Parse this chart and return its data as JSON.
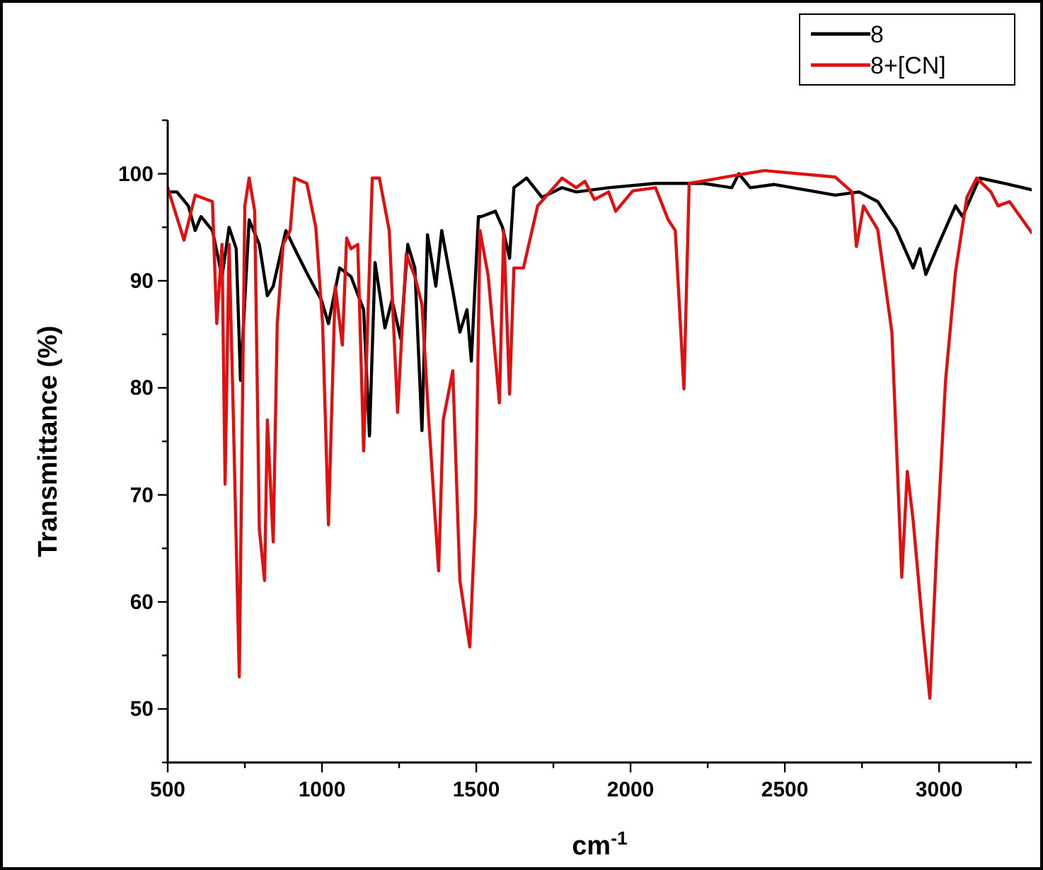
{
  "chart_data": {
    "type": "line",
    "xlabel": "cm$^{-1}$",
    "ylabel": "Transmittance (%)",
    "xlim": [
      500,
      3300
    ],
    "ylim": [
      45,
      105
    ],
    "xticks": [
      500,
      {
        "value": 750,
        "label": null
      },
      1000,
      {
        "value": 1250,
        "label": null
      },
      1500,
      {
        "value": 1750,
        "label": null
      },
      2000,
      {
        "value": 2250,
        "label": null
      },
      2500,
      {
        "value": 2750,
        "label": null
      },
      3000,
      {
        "value": 3250,
        "label": null
      }
    ],
    "yticks": [
      {
        "value": 45,
        "label": null
      },
      50,
      {
        "value": 55,
        "label": null
      },
      60,
      {
        "value": 65,
        "label": null
      },
      70,
      {
        "value": 75,
        "label": null
      },
      80,
      {
        "value": 85,
        "label": null
      },
      90,
      {
        "value": 95,
        "label": null
      },
      100,
      {
        "value": 105,
        "label": null
      }
    ],
    "legend": "top right",
    "grid": false,
    "line_style": "solid",
    "series": [
      {
        "name": "8",
        "color": "#000000",
        "x": [
          500,
          530,
          567,
          589,
          608,
          645,
          676,
          699,
          722,
          736,
          764,
          797,
          823,
          842,
          883,
          920,
          957,
          998,
          1021,
          1057,
          1094,
          1135,
          1154,
          1172,
          1204,
          1227,
          1255,
          1278,
          1301,
          1324,
          1342,
          1369,
          1388,
          1424,
          1447,
          1470,
          1484,
          1507,
          1516,
          1562,
          1585,
          1608,
          1622,
          1663,
          1713,
          1778,
          1824,
          1929,
          2081,
          2236,
          2328,
          2351,
          2388,
          2466,
          2585,
          2663,
          2741,
          2801,
          2861,
          2916,
          2938,
          2957,
          2998,
          3053,
          3076,
          3131,
          3213,
          3300
        ],
        "values": [
          98.3,
          98.3,
          97,
          94.7,
          96,
          94.7,
          90.4,
          95,
          93,
          80.7,
          95.7,
          93.4,
          88.6,
          89.5,
          94.7,
          92.5,
          90.4,
          88.2,
          86,
          91.2,
          90.4,
          87.3,
          75.5,
          91.7,
          85.6,
          88.2,
          84.6,
          93.4,
          91.2,
          76,
          94.3,
          89.5,
          94.7,
          89.1,
          85.2,
          87.3,
          82.5,
          96,
          96,
          96.5,
          95,
          92.1,
          98.7,
          99.6,
          97.8,
          98.7,
          98.3,
          98.7,
          99.1,
          99.1,
          98.7,
          100,
          98.7,
          99,
          98.4,
          98,
          98.3,
          97.4,
          94.8,
          91.2,
          93,
          90.6,
          93.4,
          97,
          96,
          99.6,
          99.1,
          98.5
        ]
      },
      {
        "name": "8+[CN]",
        "color": "#e01010",
        "x": [
          500,
          553,
          589,
          645,
          659,
          676,
          686,
          699,
          713,
          732,
          750,
          764,
          782,
          797,
          814,
          823,
          842,
          855,
          874,
          897,
          911,
          951,
          980,
          1002,
          1021,
          1043,
          1066,
          1080,
          1094,
          1116,
          1135,
          1163,
          1186,
          1218,
          1245,
          1273,
          1301,
          1324,
          1346,
          1378,
          1393,
          1424,
          1447,
          1479,
          1498,
          1512,
          1539,
          1575,
          1589,
          1608,
          1622,
          1653,
          1699,
          1778,
          1824,
          1852,
          1883,
          1929,
          1952,
          2007,
          2081,
          2122,
          2145,
          2173,
          2190,
          2310,
          2433,
          2663,
          2718,
          2732,
          2755,
          2801,
          2847,
          2879,
          2897,
          2916,
          2947,
          2970,
          2993,
          3021,
          3053,
          3090,
          3122,
          3168,
          3191,
          3228,
          3300
        ],
        "values": [
          98.7,
          93.8,
          98,
          97.4,
          86,
          93.4,
          71,
          93.4,
          77,
          53,
          97,
          99.6,
          96.5,
          66.8,
          62,
          77,
          65.6,
          86,
          93.4,
          94.7,
          99.6,
          99.1,
          95,
          86,
          67.2,
          89.5,
          84,
          94,
          93,
          93.4,
          74.1,
          99.6,
          99.6,
          94.7,
          77.7,
          92.5,
          90.4,
          87.8,
          77,
          62.9,
          77,
          81.6,
          62,
          55.8,
          68.5,
          94.7,
          90.4,
          78.6,
          94.7,
          79.4,
          91.2,
          91.2,
          97,
          99.6,
          98.7,
          99.3,
          97.6,
          98.3,
          96.5,
          98.4,
          98.7,
          95.7,
          94.7,
          79.9,
          99.1,
          99.7,
          100.3,
          99.7,
          98.3,
          93.2,
          97,
          94.8,
          85.2,
          62.3,
          72.2,
          67.6,
          57.6,
          51,
          65.5,
          80.7,
          90.8,
          97.8,
          99.6,
          98.3,
          97,
          97.4,
          94.5
        ]
      }
    ]
  }
}
